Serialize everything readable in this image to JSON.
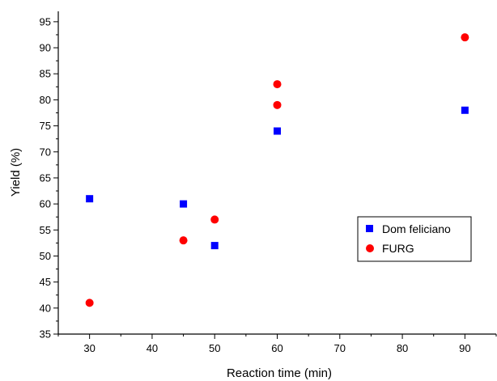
{
  "chart_data": {
    "type": "scatter",
    "title": "",
    "xlabel": "Reaction time (min)",
    "ylabel": "Yield (%)",
    "xlim": [
      25,
      95
    ],
    "ylim": [
      35,
      97
    ],
    "x_ticks": [
      30,
      40,
      50,
      60,
      70,
      80,
      90
    ],
    "y_ticks": [
      35,
      40,
      45,
      50,
      55,
      60,
      65,
      70,
      75,
      80,
      85,
      90,
      95
    ],
    "grid": false,
    "legend_position": "right",
    "series": [
      {
        "name": "Dom feliciano",
        "marker": "square",
        "color": "#0000ff",
        "points": [
          [
            30,
            61
          ],
          [
            45,
            60
          ],
          [
            50,
            52
          ],
          [
            60,
            74
          ],
          [
            90,
            78
          ]
        ]
      },
      {
        "name": "FURG",
        "marker": "circle",
        "color": "#ff0000",
        "points": [
          [
            30,
            41
          ],
          [
            45,
            53
          ],
          [
            50,
            57
          ],
          [
            60,
            83
          ],
          [
            60,
            79
          ],
          [
            90,
            92
          ]
        ]
      }
    ]
  }
}
